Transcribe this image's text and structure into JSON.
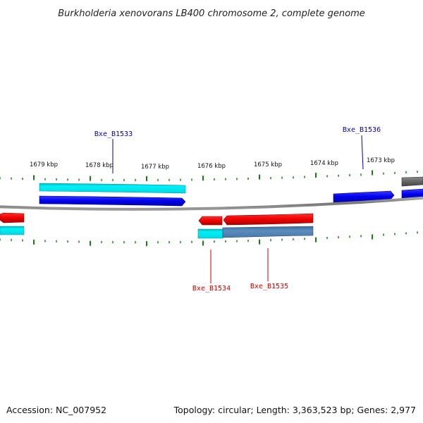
{
  "title": "Burkholderia xenovorans LB400 chromosome 2, complete genome",
  "footer": {
    "accession": "Accession: NC_007952",
    "summary": "Topology: circular; Length: 3,363,523 bp; Genes: 2,977"
  },
  "scale_labels": [
    "1679 kbp",
    "1678 kbp",
    "1677 kbp",
    "1676 kbp",
    "1675 kbp",
    "1674 kbp",
    "1673 kbp"
  ],
  "gene_labels": [
    {
      "name": "Bxe_B1533",
      "strand": "forward",
      "color": "#0000aa"
    },
    {
      "name": "Bxe_B1536",
      "strand": "forward",
      "color": "#0000aa"
    },
    {
      "name": "Bxe_B1534",
      "strand": "reverse",
      "color": "#cc0000"
    },
    {
      "name": "Bxe_B1535",
      "strand": "reverse",
      "color": "#cc0000"
    }
  ],
  "colors": {
    "forward_cds": "#0000ee",
    "forward_gene": "#00e5ee",
    "reverse_cds": "#ee0000",
    "reverse_gene_cyan": "#00e5ee",
    "reverse_gene_steel": "#4f81b4",
    "backbone": "#888888",
    "tick": "#1a7a1a",
    "grey_feature": "#666666"
  }
}
